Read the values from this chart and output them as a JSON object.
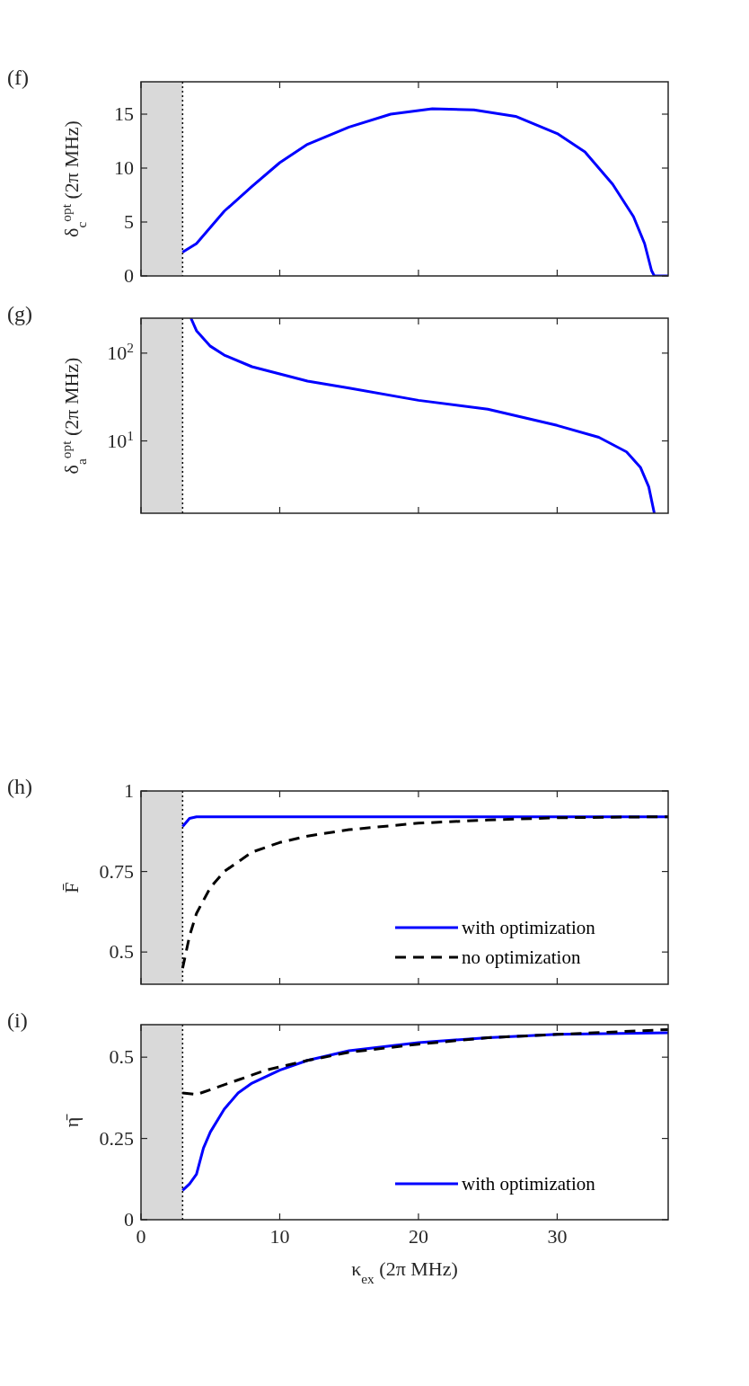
{
  "chart_data": [
    {
      "type": "line",
      "title": "(f)",
      "ylabel": "δ$_{c}$$^{opt}$ (2π MHz)",
      "xlim": [
        0,
        38
      ],
      "xticks": [
        0,
        10,
        20,
        30
      ],
      "ylim": [
        0,
        18
      ],
      "yticks": [
        0,
        5,
        10,
        15
      ],
      "tick_labels": "y",
      "legend": false,
      "marker": "none",
      "bands": [
        {
          "axis": "x",
          "from": 0,
          "to": 3,
          "color": "#d9d9d9"
        }
      ],
      "ref_lines": [
        {
          "axis": "x",
          "value": 3,
          "color": "#000000",
          "line_style": "dotted"
        }
      ],
      "series": [
        {
          "color": "#0000ff",
          "line_style": "solid",
          "x": [
            3,
            4,
            5,
            6,
            8,
            10,
            12,
            15,
            18,
            21,
            24,
            27,
            30,
            32,
            34,
            35.5,
            36.3,
            36.8,
            37,
            38
          ],
          "values": [
            2.2,
            3,
            4.5,
            6,
            8.3,
            10.5,
            12.2,
            13.8,
            15,
            15.5,
            15.4,
            14.8,
            13.2,
            11.5,
            8.5,
            5.5,
            3,
            0.5,
            0,
            0
          ]
        }
      ]
    },
    {
      "type": "line",
      "title": "(g)",
      "ylabel": "δ$_{a}$$^{opt}$ (2π MHz)",
      "xlim": [
        0,
        38
      ],
      "xticks": [
        0,
        10,
        20,
        30
      ],
      "ylim": [
        1.5,
        250
      ],
      "yticks": [
        {
          "value": 10,
          "label": "10$^{1}$"
        },
        {
          "value": 100,
          "label": "10$^{2}$"
        }
      ],
      "log": "y",
      "tick_labels": "y",
      "legend": false,
      "marker": "none",
      "bands": [
        {
          "axis": "x",
          "from": 0,
          "to": 3,
          "color": "#d9d9d9"
        }
      ],
      "ref_lines": [
        {
          "axis": "x",
          "value": 3,
          "color": "#000000",
          "line_style": "dotted"
        }
      ],
      "series": [
        {
          "color": "#0000ff",
          "line_style": "solid",
          "x": [
            3.6,
            4,
            5,
            6,
            8,
            10,
            12,
            15,
            20,
            25,
            30,
            33,
            35,
            36,
            36.6,
            37
          ],
          "values": [
            250,
            180,
            120,
            95,
            70,
            58,
            48,
            40,
            29,
            23,
            15,
            11,
            7.5,
            5,
            3,
            1.5
          ]
        }
      ]
    },
    {
      "type": "line",
      "title": "(h)",
      "ylabel": "F̄",
      "xlim": [
        0,
        38
      ],
      "xticks": [
        0,
        10,
        20,
        30
      ],
      "ylim": [
        0.4,
        1
      ],
      "yticks": [
        0.5,
        0.75,
        1
      ],
      "tick_labels": "y",
      "legend": "bottom right",
      "marker": "none",
      "bands": [
        {
          "axis": "x",
          "from": 0,
          "to": 3,
          "color": "#d9d9d9"
        }
      ],
      "ref_lines": [
        {
          "axis": "x",
          "value": 3,
          "color": "#000000",
          "line_style": "dotted"
        }
      ],
      "series": [
        {
          "name": "with optimization",
          "color": "#0000ff",
          "line_style": "solid",
          "x": [
            3,
            3.5,
            4,
            10,
            20,
            30,
            38
          ],
          "values": [
            0.89,
            0.915,
            0.92,
            0.92,
            0.92,
            0.92,
            0.92
          ]
        },
        {
          "name": "no optimization",
          "color": "#000000",
          "line_style": "dashed",
          "x": [
            3,
            3.5,
            4,
            5,
            6,
            8,
            10,
            12,
            15,
            20,
            25,
            30,
            38
          ],
          "values": [
            0.45,
            0.55,
            0.62,
            0.7,
            0.75,
            0.81,
            0.84,
            0.86,
            0.88,
            0.9,
            0.91,
            0.917,
            0.92
          ]
        }
      ]
    },
    {
      "type": "line",
      "title": "(i)",
      "xlabel": "κ$_{ex}$ (2π MHz)",
      "ylabel": "η̄",
      "xlim": [
        0,
        38
      ],
      "xticks": [
        0,
        10,
        20,
        30
      ],
      "ylim": [
        0,
        0.6
      ],
      "yticks": [
        0,
        0.25,
        0.5
      ],
      "legend": "bottom right",
      "marker": "none",
      "bands": [
        {
          "axis": "x",
          "from": 0,
          "to": 3,
          "color": "#d9d9d9"
        }
      ],
      "ref_lines": [
        {
          "axis": "x",
          "value": 3,
          "color": "#000000",
          "line_style": "dotted"
        }
      ],
      "series": [
        {
          "name": "with optimization",
          "color": "#0000ff",
          "line_style": "solid",
          "x": [
            3,
            3.5,
            4,
            4.5,
            5,
            6,
            7,
            8,
            10,
            12,
            15,
            20,
            25,
            30,
            38
          ],
          "values": [
            0.09,
            0.11,
            0.14,
            0.22,
            0.27,
            0.34,
            0.39,
            0.42,
            0.46,
            0.49,
            0.52,
            0.545,
            0.56,
            0.57,
            0.575
          ]
        },
        {
          "color": "#000000",
          "line_style": "dashed",
          "x": [
            3,
            4,
            5,
            7,
            9,
            12,
            15,
            20,
            25,
            30,
            38
          ],
          "values": [
            0.39,
            0.385,
            0.4,
            0.43,
            0.46,
            0.49,
            0.515,
            0.54,
            0.56,
            0.57,
            0.585
          ]
        }
      ]
    }
  ]
}
